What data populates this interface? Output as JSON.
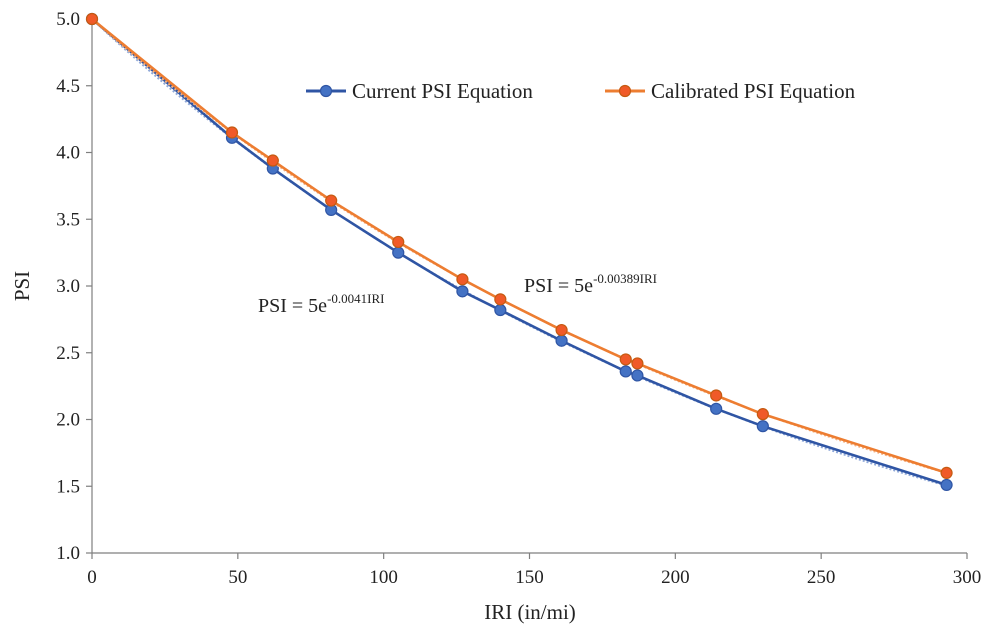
{
  "chart_data": {
    "type": "line",
    "title": "",
    "xlabel": "IRI (in/mi)",
    "ylabel": "PSI",
    "xlim": [
      0,
      300
    ],
    "ylim": [
      1.0,
      5.0
    ],
    "xticks": [
      0,
      50,
      100,
      150,
      200,
      250,
      300
    ],
    "yticks": [
      1.0,
      1.5,
      2.0,
      2.5,
      3.0,
      3.5,
      4.0,
      4.5,
      5.0
    ],
    "xtick_labels": [
      "0",
      "50",
      "100",
      "150",
      "200",
      "250",
      "300"
    ],
    "ytick_labels": [
      "1.0",
      "1.5",
      "2.0",
      "2.5",
      "3.0",
      "3.5",
      "4.0",
      "4.5",
      "5.0"
    ],
    "grid": false,
    "legend_position": "top-right",
    "series": [
      {
        "name": "Current PSI Equation",
        "color": "#2f55a4",
        "marker_color": "#4472c4",
        "x": [
          0,
          48,
          62,
          82,
          105,
          127,
          140,
          161,
          183,
          187,
          214,
          230,
          293
        ],
        "y": [
          5.0,
          4.11,
          3.88,
          3.57,
          3.25,
          2.96,
          2.82,
          2.59,
          2.36,
          2.33,
          2.08,
          1.95,
          1.51
        ]
      },
      {
        "name": "Calibrated PSI Equation",
        "color": "#ed7d31",
        "marker_color": "#f05a28",
        "x": [
          0,
          48,
          62,
          82,
          105,
          127,
          140,
          161,
          183,
          187,
          214,
          230,
          293
        ],
        "y": [
          5.0,
          4.15,
          3.94,
          3.64,
          3.33,
          3.05,
          2.9,
          2.67,
          2.45,
          2.42,
          2.18,
          2.04,
          1.6
        ]
      }
    ],
    "annotations": [
      {
        "base": "PSI = 5e",
        "exponent": "-0.0041IRI"
      },
      {
        "base": "PSI = 5e",
        "exponent": "-0.00389IRI"
      }
    ]
  }
}
